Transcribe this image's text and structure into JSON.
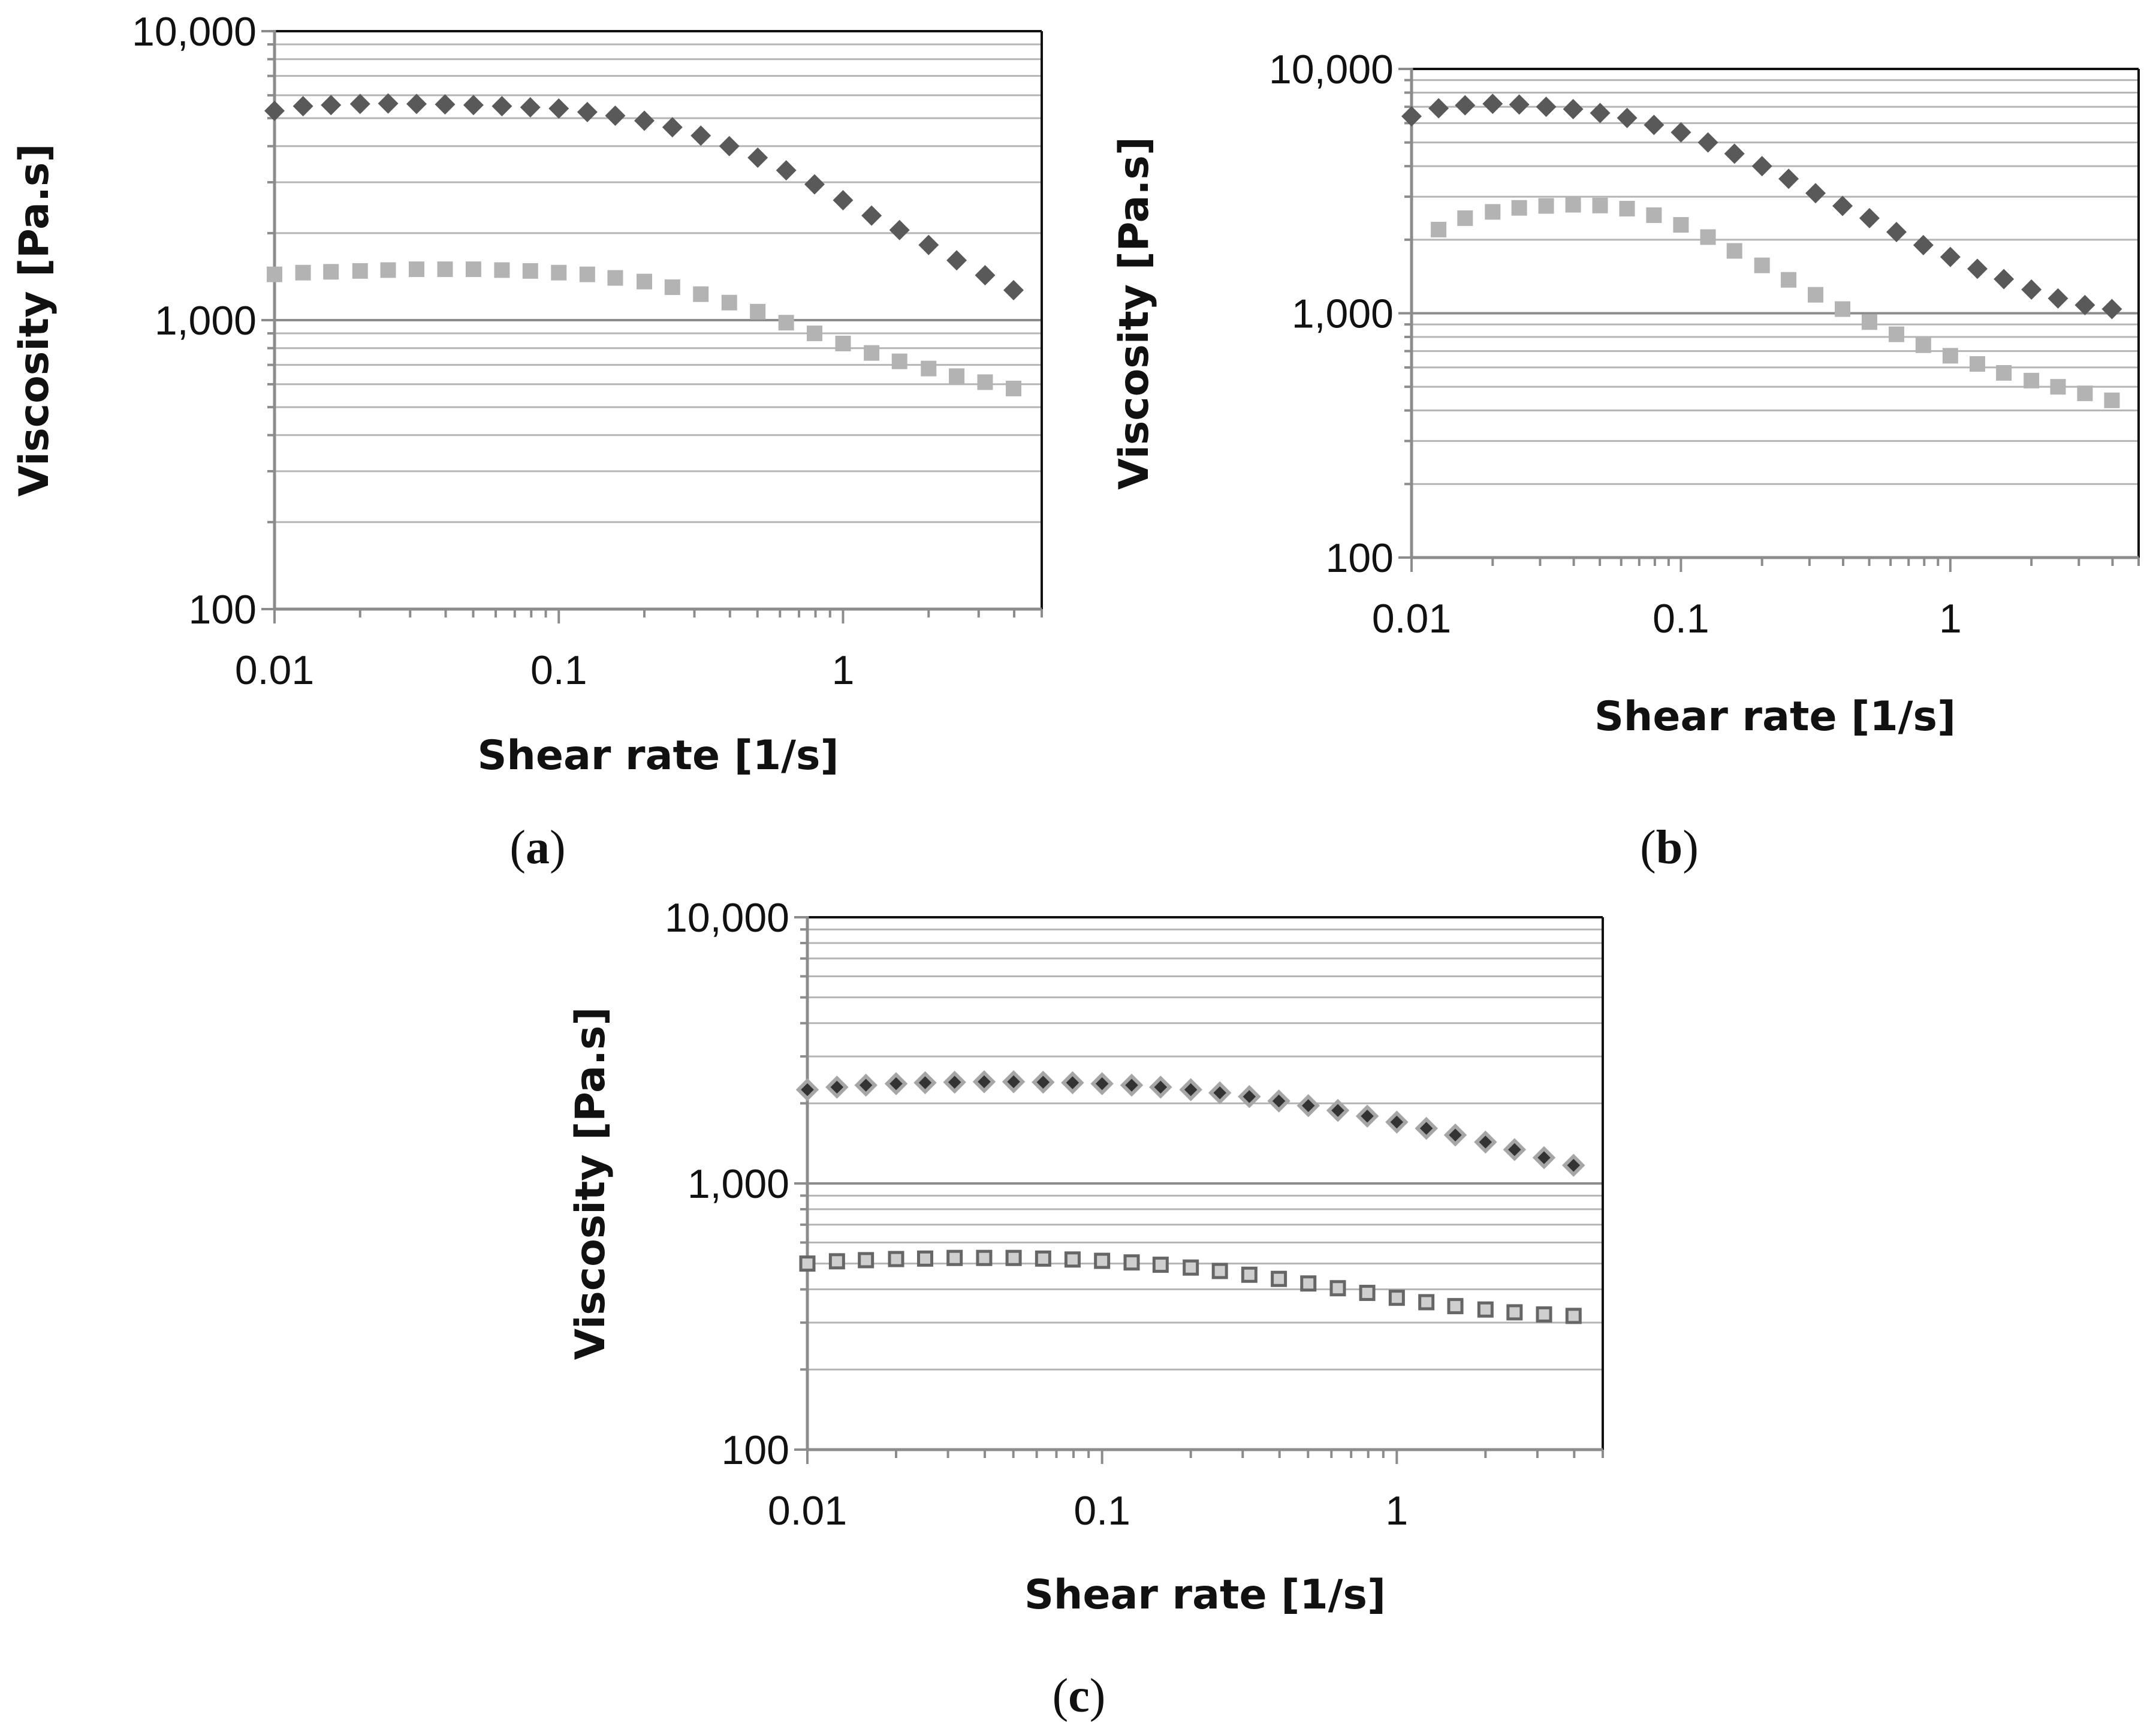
{
  "chart_data": [
    {
      "type": "scatter",
      "panel_label": "a",
      "xlabel": "Shear rate [1/s]",
      "ylabel": "Viscosity [Pa.s]",
      "xscale": "log",
      "yscale": "log",
      "xlim": [
        0.01,
        5
      ],
      "ylim": [
        100,
        10000
      ],
      "x_ticks": [
        0.01,
        0.1,
        1
      ],
      "x_tick_labels": [
        "0.01",
        "0.1",
        "1"
      ],
      "y_ticks": [
        100,
        1000,
        10000
      ],
      "y_tick_labels": [
        "100",
        "1,000",
        "10,000"
      ],
      "grid": "horizontal",
      "series": [
        {
          "name": "series 1",
          "marker": "diamond",
          "color": "#595959",
          "x": [
            0.01,
            0.0126,
            0.0158,
            0.02,
            0.0251,
            0.0316,
            0.0398,
            0.0501,
            0.0631,
            0.0794,
            0.1,
            0.126,
            0.158,
            0.2,
            0.251,
            0.316,
            0.398,
            0.501,
            0.631,
            0.794,
            1,
            1.26,
            1.58,
            2,
            2.51,
            3.16,
            3.98
          ],
          "values": [
            5300,
            5500,
            5550,
            5600,
            5620,
            5600,
            5580,
            5550,
            5500,
            5450,
            5400,
            5250,
            5100,
            4900,
            4650,
            4350,
            4000,
            3650,
            3300,
            2950,
            2600,
            2300,
            2050,
            1820,
            1610,
            1430,
            1270
          ]
        },
        {
          "name": "series 2",
          "marker": "square",
          "color": "#b3b3b3",
          "x": [
            0.01,
            0.0126,
            0.0158,
            0.02,
            0.0251,
            0.0316,
            0.0398,
            0.0501,
            0.0631,
            0.0794,
            0.1,
            0.126,
            0.158,
            0.2,
            0.251,
            0.316,
            0.398,
            0.501,
            0.631,
            0.794,
            1,
            1.26,
            1.58,
            2,
            2.51,
            3.16,
            3.98
          ],
          "values": [
            1440,
            1460,
            1470,
            1480,
            1490,
            1500,
            1500,
            1500,
            1490,
            1480,
            1460,
            1440,
            1400,
            1360,
            1300,
            1230,
            1150,
            1070,
            980,
            900,
            830,
            770,
            720,
            680,
            640,
            610,
            580
          ]
        }
      ]
    },
    {
      "type": "scatter",
      "panel_label": "b",
      "xlabel": "Shear rate [1/s]",
      "ylabel": "Viscosity [Pa.s]",
      "xscale": "log",
      "yscale": "log",
      "xlim": [
        0.01,
        5
      ],
      "ylim": [
        100,
        10000
      ],
      "x_ticks": [
        0.01,
        0.1,
        1
      ],
      "x_tick_labels": [
        "0.01",
        "0.1",
        "1"
      ],
      "y_ticks": [
        100,
        1000,
        10000
      ],
      "y_tick_labels": [
        "100",
        "1,000",
        "10,000"
      ],
      "grid": "horizontal",
      "series": [
        {
          "name": "series 1",
          "marker": "diamond",
          "color": "#595959",
          "x": [
            0.01,
            0.0126,
            0.0158,
            0.02,
            0.0251,
            0.0316,
            0.0398,
            0.0501,
            0.0631,
            0.0794,
            0.1,
            0.126,
            0.158,
            0.2,
            0.251,
            0.316,
            0.398,
            0.501,
            0.631,
            0.794,
            1,
            1.26,
            1.58,
            2,
            2.51,
            3.16,
            3.98
          ],
          "values": [
            6400,
            6900,
            7100,
            7200,
            7150,
            7000,
            6850,
            6600,
            6300,
            5900,
            5500,
            5000,
            4500,
            4000,
            3550,
            3100,
            2750,
            2450,
            2150,
            1900,
            1700,
            1520,
            1380,
            1250,
            1150,
            1080,
            1040
          ]
        },
        {
          "name": "series 2",
          "marker": "square",
          "color": "#b3b3b3",
          "x": [
            0.0126,
            0.0158,
            0.02,
            0.0251,
            0.0316,
            0.0398,
            0.0501,
            0.0631,
            0.0794,
            0.1,
            0.126,
            0.158,
            0.2,
            0.251,
            0.316,
            0.398,
            0.501,
            0.631,
            0.794,
            1,
            1.26,
            1.58,
            2,
            2.51,
            3.16,
            3.98
          ],
          "values": [
            2200,
            2450,
            2600,
            2700,
            2750,
            2780,
            2760,
            2680,
            2520,
            2300,
            2050,
            1800,
            1570,
            1370,
            1190,
            1040,
            920,
            820,
            740,
            670,
            620,
            570,
            530,
            500,
            470,
            440
          ]
        }
      ]
    },
    {
      "type": "scatter",
      "panel_label": "c",
      "xlabel": "Shear rate [1/s]",
      "ylabel": "Viscosity [Pa.s]",
      "xscale": "log",
      "yscale": "log",
      "xlim": [
        0.01,
        5
      ],
      "ylim": [
        100,
        10000
      ],
      "x_ticks": [
        0.01,
        0.1,
        1
      ],
      "x_tick_labels": [
        "0.01",
        "0.1",
        "1"
      ],
      "y_ticks": [
        100,
        1000,
        10000
      ],
      "y_tick_labels": [
        "100",
        "1,000",
        "10,000"
      ],
      "grid": "horizontal",
      "series": [
        {
          "name": "series 1",
          "marker": "diamond-outline",
          "color": "#a6a6a6",
          "x": [
            0.01,
            0.0126,
            0.0158,
            0.02,
            0.0251,
            0.0316,
            0.0398,
            0.0501,
            0.0631,
            0.0794,
            0.1,
            0.126,
            0.158,
            0.2,
            0.251,
            0.316,
            0.398,
            0.501,
            0.631,
            0.794,
            1,
            1.26,
            1.58,
            2,
            2.51,
            3.16,
            3.98
          ],
          "values": [
            2250,
            2300,
            2340,
            2370,
            2390,
            2400,
            2410,
            2410,
            2400,
            2390,
            2370,
            2340,
            2300,
            2250,
            2190,
            2120,
            2040,
            1960,
            1880,
            1790,
            1700,
            1610,
            1520,
            1430,
            1340,
            1250,
            1170
          ]
        },
        {
          "name": "series 2",
          "marker": "square-outline",
          "color": "#999999",
          "x": [
            0.01,
            0.0126,
            0.0158,
            0.02,
            0.0251,
            0.0316,
            0.0398,
            0.0501,
            0.0631,
            0.0794,
            0.1,
            0.126,
            0.158,
            0.2,
            0.251,
            0.316,
            0.398,
            0.501,
            0.631,
            0.794,
            1,
            1.26,
            1.58,
            2,
            2.51,
            3.16,
            3.98
          ],
          "values": [
            500,
            510,
            515,
            520,
            522,
            525,
            525,
            525,
            522,
            518,
            512,
            505,
            495,
            483,
            469,
            454,
            438,
            421,
            404,
            388,
            372,
            358,
            346,
            336,
            328,
            322,
            318
          ]
        }
      ]
    }
  ]
}
